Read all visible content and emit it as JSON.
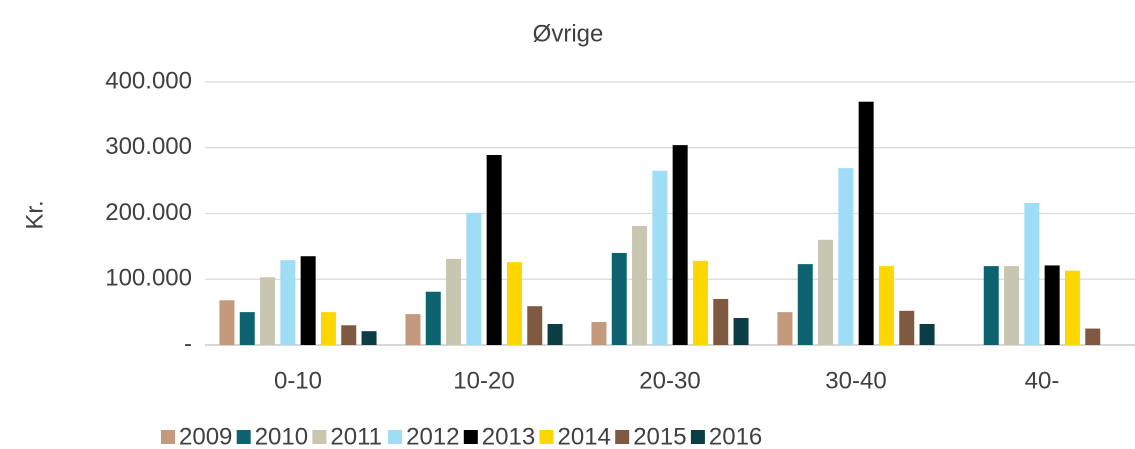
{
  "chart_data": {
    "type": "bar",
    "title": "Øvrige",
    "y_label": "Kr.",
    "categories": [
      "0-10",
      "10-20",
      "20-30",
      "30-40",
      "40-"
    ],
    "series": [
      {
        "name": "2009",
        "color": "#c49a7c",
        "values": [
          68000,
          47000,
          35000,
          50000,
          null
        ]
      },
      {
        "name": "2010",
        "color": "#0d6470",
        "values": [
          50000,
          81000,
          140000,
          123000,
          120000
        ]
      },
      {
        "name": "2011",
        "color": "#c8c5b0",
        "values": [
          103000,
          131000,
          181000,
          160000,
          120000
        ]
      },
      {
        "name": "2012",
        "color": "#9fdcf5",
        "values": [
          129000,
          201000,
          265000,
          269000,
          216000
        ]
      },
      {
        "name": "2013",
        "color": "#000000",
        "values": [
          135000,
          289000,
          304000,
          370000,
          121000
        ]
      },
      {
        "name": "2014",
        "color": "#ffd700",
        "values": [
          50000,
          126000,
          128000,
          120000,
          113000
        ]
      },
      {
        "name": "2015",
        "color": "#7f5a40",
        "values": [
          30000,
          59000,
          70000,
          52000,
          25000
        ]
      },
      {
        "name": "2016",
        "color": "#0a3d44",
        "values": [
          21000,
          32000,
          41000,
          32000,
          null
        ]
      }
    ],
    "ylim": [
      0,
      400000
    ],
    "yticks": [
      {
        "value": 0,
        "label": "-"
      },
      {
        "value": 100000,
        "label": "100.000"
      },
      {
        "value": 200000,
        "label": "200.000"
      },
      {
        "value": 300000,
        "label": "300.000"
      },
      {
        "value": 400000,
        "label": "400.000"
      }
    ],
    "grid": true,
    "legend": "bottom"
  }
}
